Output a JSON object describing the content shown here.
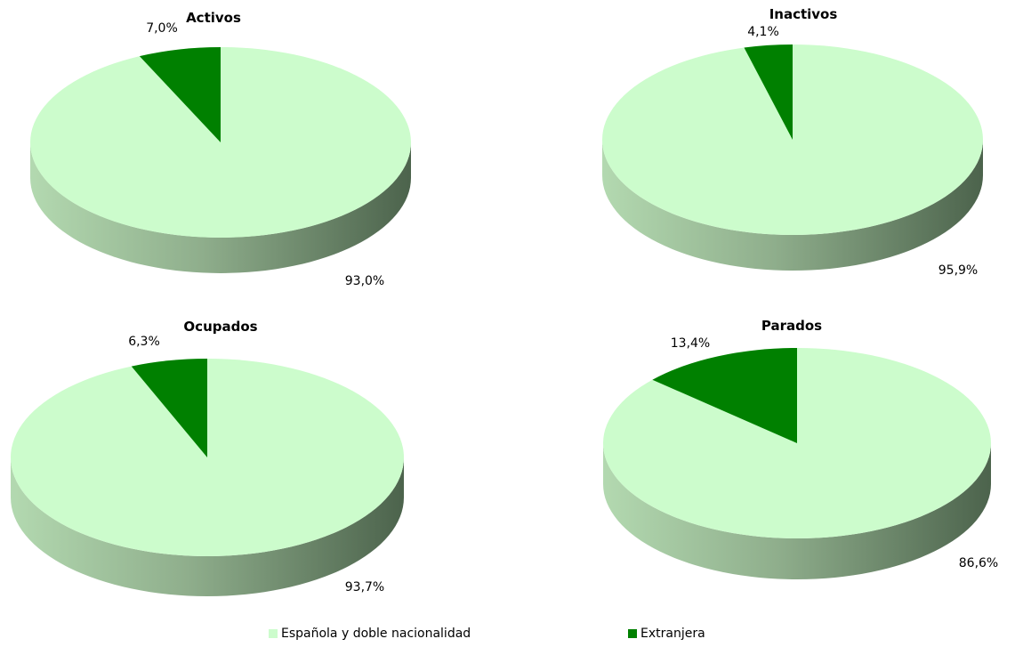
{
  "chart_data": [
    {
      "type": "pie",
      "title": "Activos",
      "categories": [
        "Española y doble nacionalidad",
        "Extranjera"
      ],
      "values": [
        93.0,
        7.0
      ],
      "labels": [
        "93,0%",
        "7,0%"
      ]
    },
    {
      "type": "pie",
      "title": "Inactivos",
      "categories": [
        "Española y doble nacionalidad",
        "Extranjera"
      ],
      "values": [
        95.9,
        4.1
      ],
      "labels": [
        "95,9%",
        "4,1%"
      ]
    },
    {
      "type": "pie",
      "title": "Ocupados",
      "categories": [
        "Española y doble nacionalidad",
        "Extranjera"
      ],
      "values": [
        93.7,
        6.3
      ],
      "labels": [
        "93,7%",
        "6,3%"
      ]
    },
    {
      "type": "pie",
      "title": "Parados",
      "categories": [
        "Española y doble nacionalidad",
        "Extranjera"
      ],
      "values": [
        86.6,
        13.4
      ],
      "labels": [
        "86,6%",
        "13,4%"
      ]
    }
  ],
  "legend": {
    "placement": "bottom",
    "items": [
      {
        "label": "Española y doble nacionalidad",
        "color": "#ccfccc"
      },
      {
        "label": "Extranjera",
        "color": "#008000"
      }
    ]
  },
  "colors": {
    "spanish_top": "#ccfccc",
    "spanish_side_light": "#b3d9b0",
    "spanish_side_dark": "#4c634c",
    "foreign": "#008000"
  }
}
